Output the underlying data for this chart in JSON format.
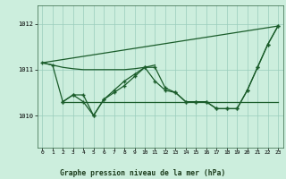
{
  "background_color": "#cceedd",
  "grid_color": "#99ccbb",
  "line_color": "#1a5c2a",
  "title": "Graphe pression niveau de la mer (hPa)",
  "xlim": [
    -0.5,
    23.5
  ],
  "ylim": [
    1009.3,
    1012.4
  ],
  "yticks": [
    1010,
    1011,
    1012
  ],
  "xticks": [
    0,
    1,
    2,
    3,
    4,
    5,
    6,
    7,
    8,
    9,
    10,
    11,
    12,
    13,
    14,
    15,
    16,
    17,
    18,
    19,
    20,
    21,
    22,
    23
  ],
  "series": [
    {
      "x": [
        0,
        1,
        2,
        3,
        4,
        5,
        6,
        7,
        8,
        9,
        10,
        11
      ],
      "y": [
        1011.15,
        1011.1,
        1011.05,
        1011.02,
        1011.0,
        1011.0,
        1011.0,
        1011.0,
        1011.0,
        1011.02,
        1011.05,
        1011.1
      ],
      "marker": false,
      "linewidth": 0.9
    },
    {
      "x": [
        0,
        23
      ],
      "y": [
        1011.15,
        1011.95
      ],
      "marker": false,
      "linewidth": 0.9
    },
    {
      "x": [
        0,
        1,
        2,
        3,
        4,
        5,
        6,
        7,
        8,
        9,
        10,
        11,
        12,
        13,
        14,
        15,
        16,
        17,
        18,
        19,
        20,
        21,
        22,
        23
      ],
      "y": [
        1011.15,
        1011.1,
        1010.3,
        1010.45,
        1010.45,
        1010.0,
        1010.35,
        1010.5,
        1010.65,
        1010.85,
        1011.05,
        1010.75,
        1010.55,
        1010.5,
        1010.3,
        1010.3,
        1010.3,
        1010.15,
        1010.15,
        1010.15,
        1010.55,
        1011.05,
        1011.55,
        1011.95
      ],
      "marker": true,
      "linewidth": 0.9
    },
    {
      "x": [
        2,
        3,
        4,
        5,
        6,
        7,
        8,
        9,
        10,
        11,
        12,
        13,
        14,
        15,
        16,
        17,
        18,
        19,
        20,
        21,
        22,
        23
      ],
      "y": [
        1010.3,
        1010.3,
        1010.3,
        1010.3,
        1010.3,
        1010.3,
        1010.3,
        1010.3,
        1010.3,
        1010.3,
        1010.3,
        1010.3,
        1010.3,
        1010.3,
        1010.3,
        1010.3,
        1010.3,
        1010.3,
        1010.3,
        1010.3,
        1010.3,
        1010.3
      ],
      "marker": false,
      "linewidth": 0.9
    },
    {
      "x": [
        2,
        3,
        4,
        5,
        6,
        7,
        8,
        9,
        10,
        11,
        12,
        13,
        14,
        15,
        16,
        17,
        18,
        19,
        20,
        21,
        22,
        23
      ],
      "y": [
        1010.3,
        1010.45,
        1010.3,
        1010.0,
        1010.35,
        1010.55,
        1010.75,
        1010.9,
        1011.05,
        1011.05,
        1010.6,
        1010.5,
        1010.3,
        1010.3,
        1010.3,
        1010.15,
        1010.15,
        1010.15,
        1010.55,
        1011.05,
        1011.55,
        1011.95
      ],
      "marker": true,
      "linewidth": 0.9
    }
  ]
}
